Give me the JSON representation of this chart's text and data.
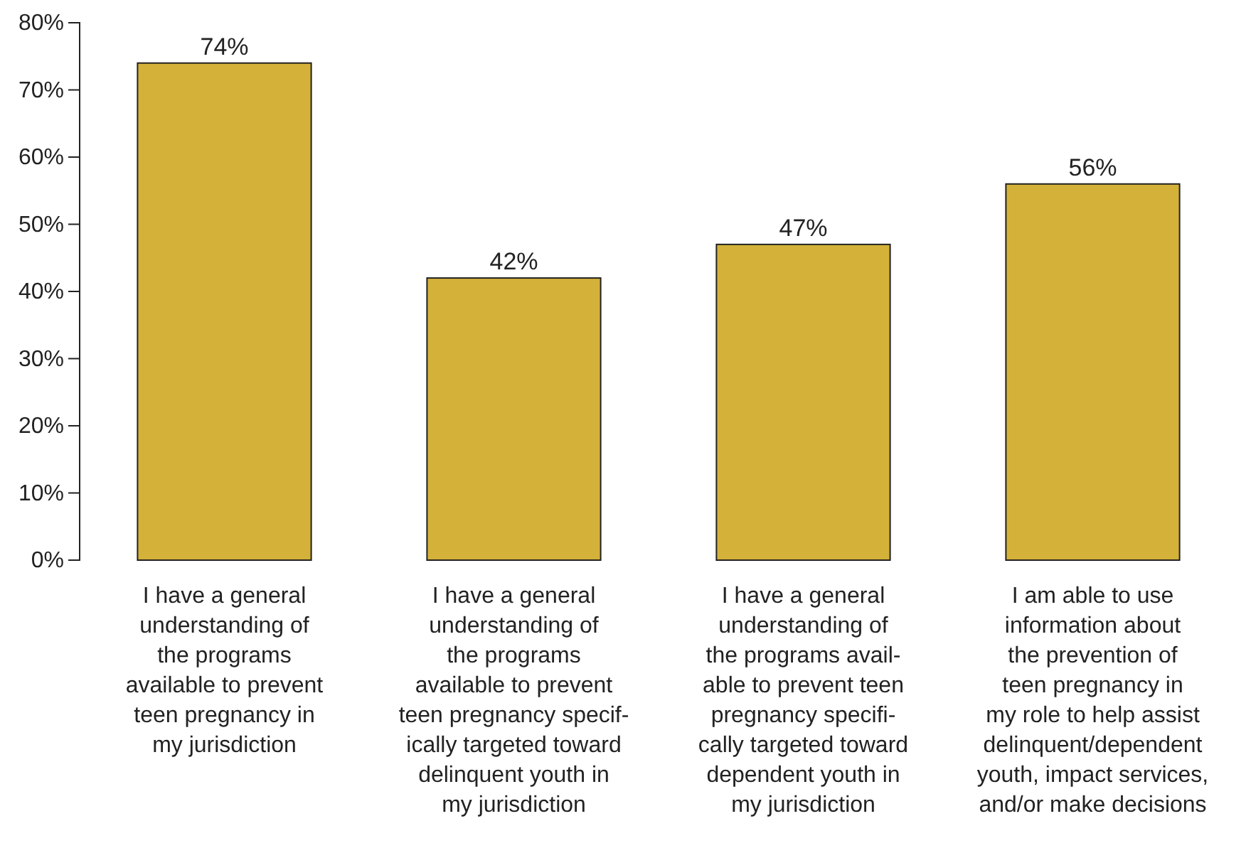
{
  "chart_data": {
    "type": "bar",
    "categories": [
      "I have a general\nunderstanding of\nthe programs\navailable to prevent\nteen pregnancy in\nmy jurisdiction",
      "I have a general\nunderstanding of\nthe programs\navailable to prevent\nteen pregnancy specif-\nically targeted toward\ndelinquent youth in\nmy jurisdiction",
      "I have a general\nunderstanding of\nthe programs avail-\nable to prevent teen\npregnancy specifi-\ncally targeted toward\ndependent youth in\nmy jurisdiction",
      "I am able to use\ninformation about\nthe prevention of\nteen pregnancy in\nmy role to help assist\ndelinquent/dependent\nyouth, impact services,\nand/or make decisions"
    ],
    "values": [
      74,
      42,
      47,
      56
    ],
    "value_labels": [
      "74%",
      "42%",
      "47%",
      "56%"
    ],
    "color": "#d4b23a",
    "ylim": [
      0,
      80
    ],
    "yticks": [
      {
        "value": 0,
        "label": "0%"
      },
      {
        "value": 10,
        "label": "10%"
      },
      {
        "value": 20,
        "label": "20%"
      },
      {
        "value": 30,
        "label": "30%"
      },
      {
        "value": 40,
        "label": "40%"
      },
      {
        "value": 50,
        "label": "50%"
      },
      {
        "value": 60,
        "label": "60%"
      },
      {
        "value": 70,
        "label": "70%"
      },
      {
        "value": 80,
        "label": "80%"
      }
    ],
    "grid": false
  }
}
